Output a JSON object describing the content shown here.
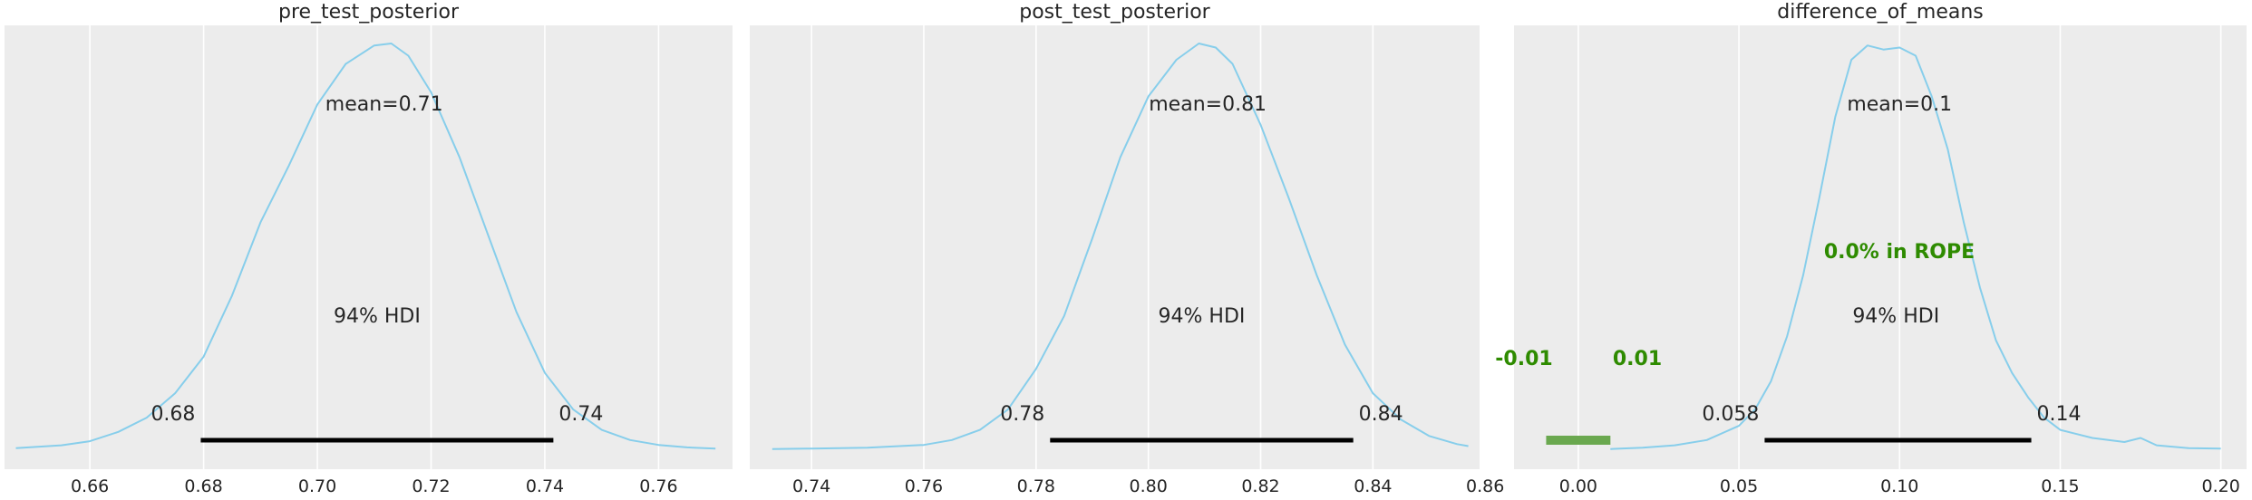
{
  "figure": {
    "background": "#ffffff",
    "axes_facecolor": "#ececec",
    "grid_color": "#ffffff",
    "curve_color": "#87ceeb",
    "hdi_color": "#000000",
    "rope_color": "#6aa84f",
    "rope_text_color": "#2e8b00"
  },
  "chart_data": [
    {
      "type": "line",
      "title": "pre_test_posterior",
      "xlim": [
        0.645,
        0.773
      ],
      "xticks": [
        0.66,
        0.68,
        0.7,
        0.72,
        0.74,
        0.76
      ],
      "xtick_labels": [
        "0.66",
        "0.68",
        "0.70",
        "0.72",
        "0.74",
        "0.76"
      ],
      "grid": true,
      "mean_label": "mean=0.71",
      "hdi_label": "94% HDI",
      "hdi": [
        0.6795,
        0.7415
      ],
      "hdi_low_label": "0.68",
      "hdi_high_label": "0.74",
      "density": {
        "x": [
          0.647,
          0.655,
          0.66,
          0.665,
          0.67,
          0.675,
          0.68,
          0.685,
          0.69,
          0.695,
          0.7,
          0.705,
          0.71,
          0.713,
          0.716,
          0.72,
          0.725,
          0.73,
          0.735,
          0.74,
          0.745,
          0.75,
          0.755,
          0.76,
          0.765,
          0.77
        ],
        "y": [
          0.005,
          0.012,
          0.022,
          0.045,
          0.08,
          0.14,
          0.23,
          0.38,
          0.56,
          0.7,
          0.85,
          0.95,
          0.995,
          1.0,
          0.97,
          0.88,
          0.72,
          0.53,
          0.34,
          0.19,
          0.1,
          0.05,
          0.025,
          0.013,
          0.007,
          0.004
        ]
      }
    },
    {
      "type": "line",
      "title": "post_test_posterior",
      "xlim": [
        0.729,
        0.859
      ],
      "xticks": [
        0.74,
        0.76,
        0.78,
        0.8,
        0.82,
        0.84,
        0.86
      ],
      "xtick_labels": [
        "0.74",
        "0.76",
        "0.78",
        "0.80",
        "0.82",
        "0.84",
        "0.86"
      ],
      "grid": true,
      "mean_label": "mean=0.81",
      "hdi_label": "94% HDI",
      "hdi": [
        0.7825,
        0.8365
      ],
      "hdi_low_label": "0.78",
      "hdi_high_label": "0.84",
      "density": {
        "x": [
          0.733,
          0.74,
          0.75,
          0.76,
          0.765,
          0.77,
          0.775,
          0.78,
          0.785,
          0.79,
          0.795,
          0.8,
          0.805,
          0.809,
          0.812,
          0.815,
          0.82,
          0.825,
          0.83,
          0.835,
          0.84,
          0.845,
          0.85,
          0.855,
          0.857
        ],
        "y": [
          0.003,
          0.004,
          0.006,
          0.013,
          0.025,
          0.05,
          0.1,
          0.2,
          0.33,
          0.52,
          0.72,
          0.87,
          0.96,
          1.0,
          0.99,
          0.95,
          0.8,
          0.62,
          0.43,
          0.26,
          0.14,
          0.075,
          0.035,
          0.015,
          0.01
        ]
      }
    },
    {
      "type": "line",
      "title": "difference_of_means",
      "xlim": [
        -0.02,
        0.208
      ],
      "xticks": [
        0.0,
        0.05,
        0.1,
        0.15,
        0.2
      ],
      "xtick_labels": [
        "0.00",
        "0.05",
        "0.10",
        "0.15",
        "0.20"
      ],
      "grid": true,
      "mean_label": "mean=0.1",
      "hdi_label": "94% HDI",
      "hdi": [
        0.058,
        0.141
      ],
      "hdi_low_label": "0.058",
      "hdi_high_label": "0.14",
      "rope": [
        -0.01,
        0.01
      ],
      "rope_low_label": "-0.01",
      "rope_high_label": "0.01",
      "rope_text": "0.0% in ROPE",
      "density": {
        "x": [
          0.01,
          0.02,
          0.03,
          0.04,
          0.05,
          0.055,
          0.06,
          0.065,
          0.07,
          0.075,
          0.08,
          0.085,
          0.09,
          0.095,
          0.1,
          0.105,
          0.11,
          0.115,
          0.12,
          0.125,
          0.13,
          0.135,
          0.14,
          0.145,
          0.15,
          0.16,
          0.17,
          0.175,
          0.18,
          0.19,
          0.2
        ],
        "y": [
          0.003,
          0.006,
          0.012,
          0.025,
          0.06,
          0.1,
          0.17,
          0.28,
          0.43,
          0.62,
          0.82,
          0.96,
          0.995,
          0.985,
          0.99,
          0.97,
          0.87,
          0.74,
          0.56,
          0.4,
          0.27,
          0.19,
          0.13,
          0.08,
          0.05,
          0.03,
          0.02,
          0.03,
          0.012,
          0.005,
          0.004
        ]
      }
    }
  ]
}
